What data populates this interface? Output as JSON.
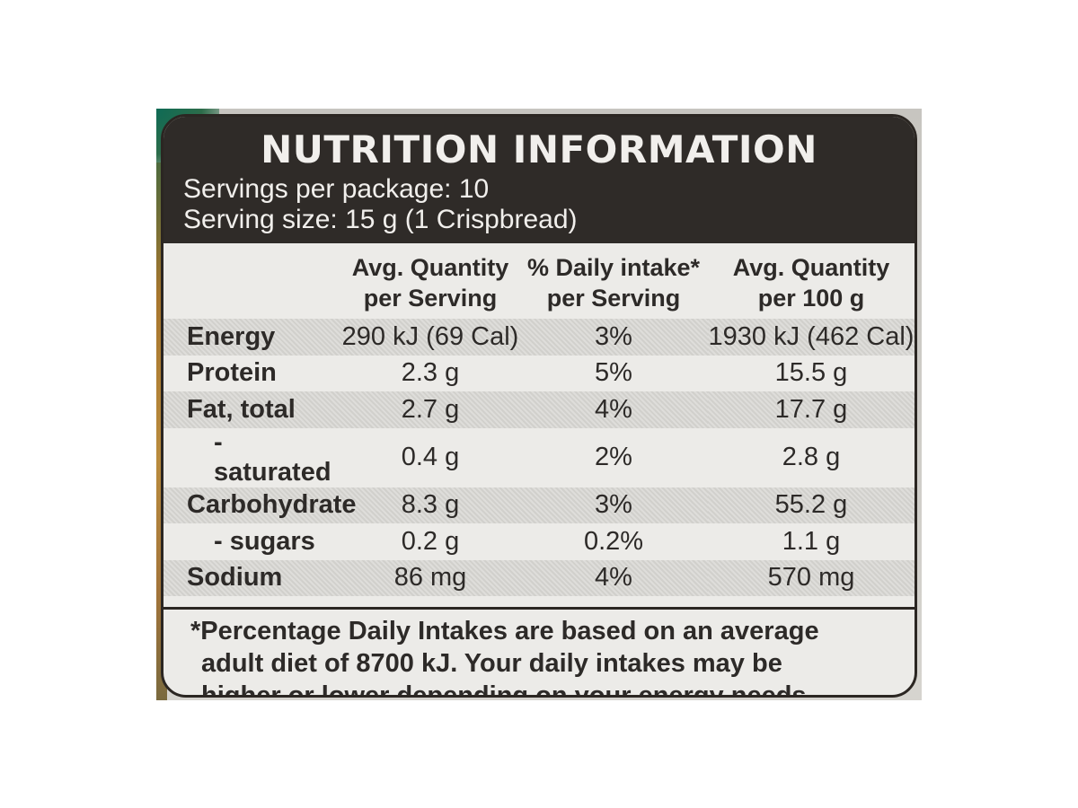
{
  "panel": {
    "title": "NUTRITION INFORMATION",
    "servings_per_package": "Servings per package: 10",
    "serving_size": "Serving size: 15 g (1 Crispbread)"
  },
  "table": {
    "headers": [
      "",
      [
        "Avg. Quantity",
        "per Serving"
      ],
      [
        "% Daily intake*",
        "per Serving"
      ],
      [
        "Avg. Quantity",
        "per 100 g"
      ]
    ],
    "rows": [
      [
        "Energy",
        "290 kJ (69 Cal)",
        "3%",
        "1930 kJ (462 Cal)"
      ],
      [
        "Protein",
        "2.3 g",
        "5%",
        "15.5 g"
      ],
      [
        "Fat, total",
        "2.7 g",
        "4%",
        "17.7 g"
      ],
      [
        "- saturated",
        "0.4 g",
        "2%",
        "2.8 g"
      ],
      [
        "Carbohydrate",
        "8.3 g",
        "3%",
        "55.2 g"
      ],
      [
        "- sugars",
        "0.2 g",
        "0.2%",
        "1.1 g"
      ],
      [
        "Sodium",
        "86 mg",
        "4%",
        "570 mg"
      ]
    ]
  },
  "footnote": [
    "*Percentage Daily Intakes are based on an average",
    "adult diet of 8700 kJ. Your daily intakes may be",
    "higher or lower depending on your energy needs."
  ],
  "colors": {
    "header_bg": "#2f2b28",
    "panel_bg": "#ecebe8",
    "text": "#2d2a28",
    "shade": "#d6d5d1"
  }
}
